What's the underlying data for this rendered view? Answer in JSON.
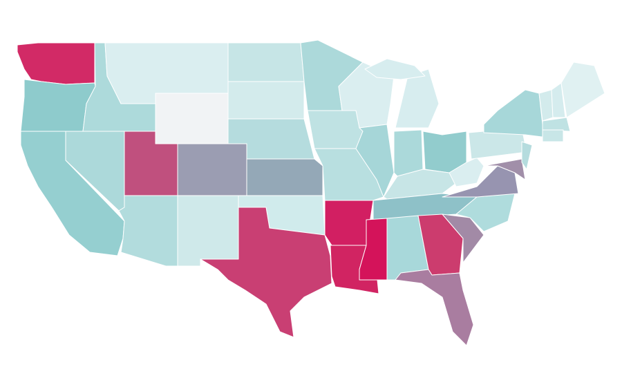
{
  "map": {
    "regions": [
      {
        "color": "#d22a66"
      },
      {
        "color": "#8ecbcc"
      },
      {
        "color": "#95cfd0"
      },
      {
        "color": "#acd9da"
      },
      {
        "color": "#addadb"
      },
      {
        "color": "#daeef0"
      },
      {
        "color": "#f1f3f5"
      },
      {
        "color": "#c0507e"
      },
      {
        "color": "#9b9db2"
      },
      {
        "color": "#b2dcdd"
      },
      {
        "color": "#cfe9ea"
      },
      {
        "color": "#c6e5e6"
      },
      {
        "color": "#d3ebec"
      },
      {
        "color": "#b5dcde"
      },
      {
        "color": "#94a8b7"
      },
      {
        "color": "#d0ebec"
      },
      {
        "color": "#c93f73"
      },
      {
        "color": "#acd9da"
      },
      {
        "color": "#bfe2e3"
      },
      {
        "color": "#b8dfe0"
      },
      {
        "color": "#d21f62"
      },
      {
        "color": "#d12462"
      },
      {
        "color": "#daeef0"
      },
      {
        "color": "#a6d6d8"
      },
      {
        "color": "#d7edef"
      },
      {
        "color": "#abd9da"
      },
      {
        "color": "#92cccd"
      },
      {
        "color": "#c7e5e6"
      },
      {
        "color": "#8ec1c8"
      },
      {
        "color": "#d4135a"
      },
      {
        "color": "#a8d8da"
      },
      {
        "color": "#cc3c6e"
      },
      {
        "color": "#a97da0"
      },
      {
        "color": "#a28aa6"
      },
      {
        "color": "#afdcdd"
      },
      {
        "color": "#9794b0"
      },
      {
        "color": "#daeef0"
      },
      {
        "color": "#cbe7e8"
      },
      {
        "color": "#a7d7d9"
      },
      {
        "color": "#a18fa9"
      },
      {
        "color": "#b5dcde"
      },
      {
        "color": "#d3ebec"
      },
      {
        "color": "#d5ecee"
      },
      {
        "color": "#e0f1f2"
      },
      {
        "color": "#bfe2e3"
      },
      {
        "color": "#c8e6e7"
      },
      {
        "color": "#d7edef"
      }
    ]
  }
}
